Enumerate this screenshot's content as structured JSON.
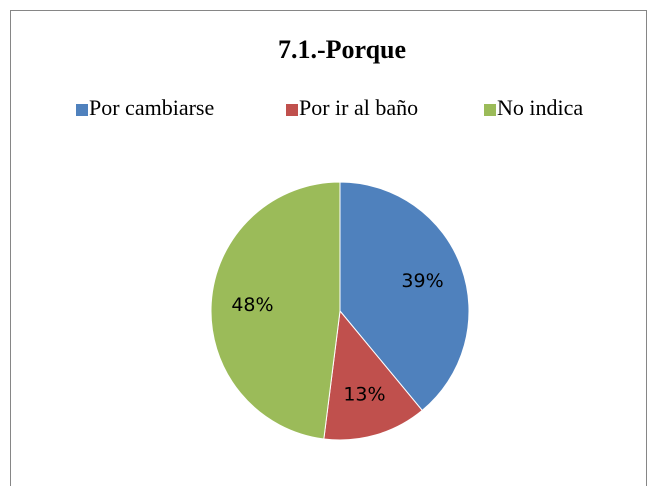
{
  "chart_data": {
    "type": "pie",
    "title": "7.1.-Porque",
    "categories": [
      "Por cambiarse",
      "Por ir al baño",
      "No indica"
    ],
    "values": [
      39,
      13,
      48
    ],
    "value_labels": [
      "39%",
      "13%",
      "48%"
    ],
    "colors": [
      "#4f81bd",
      "#c0504d",
      "#9bbb59"
    ],
    "legend": "top"
  }
}
